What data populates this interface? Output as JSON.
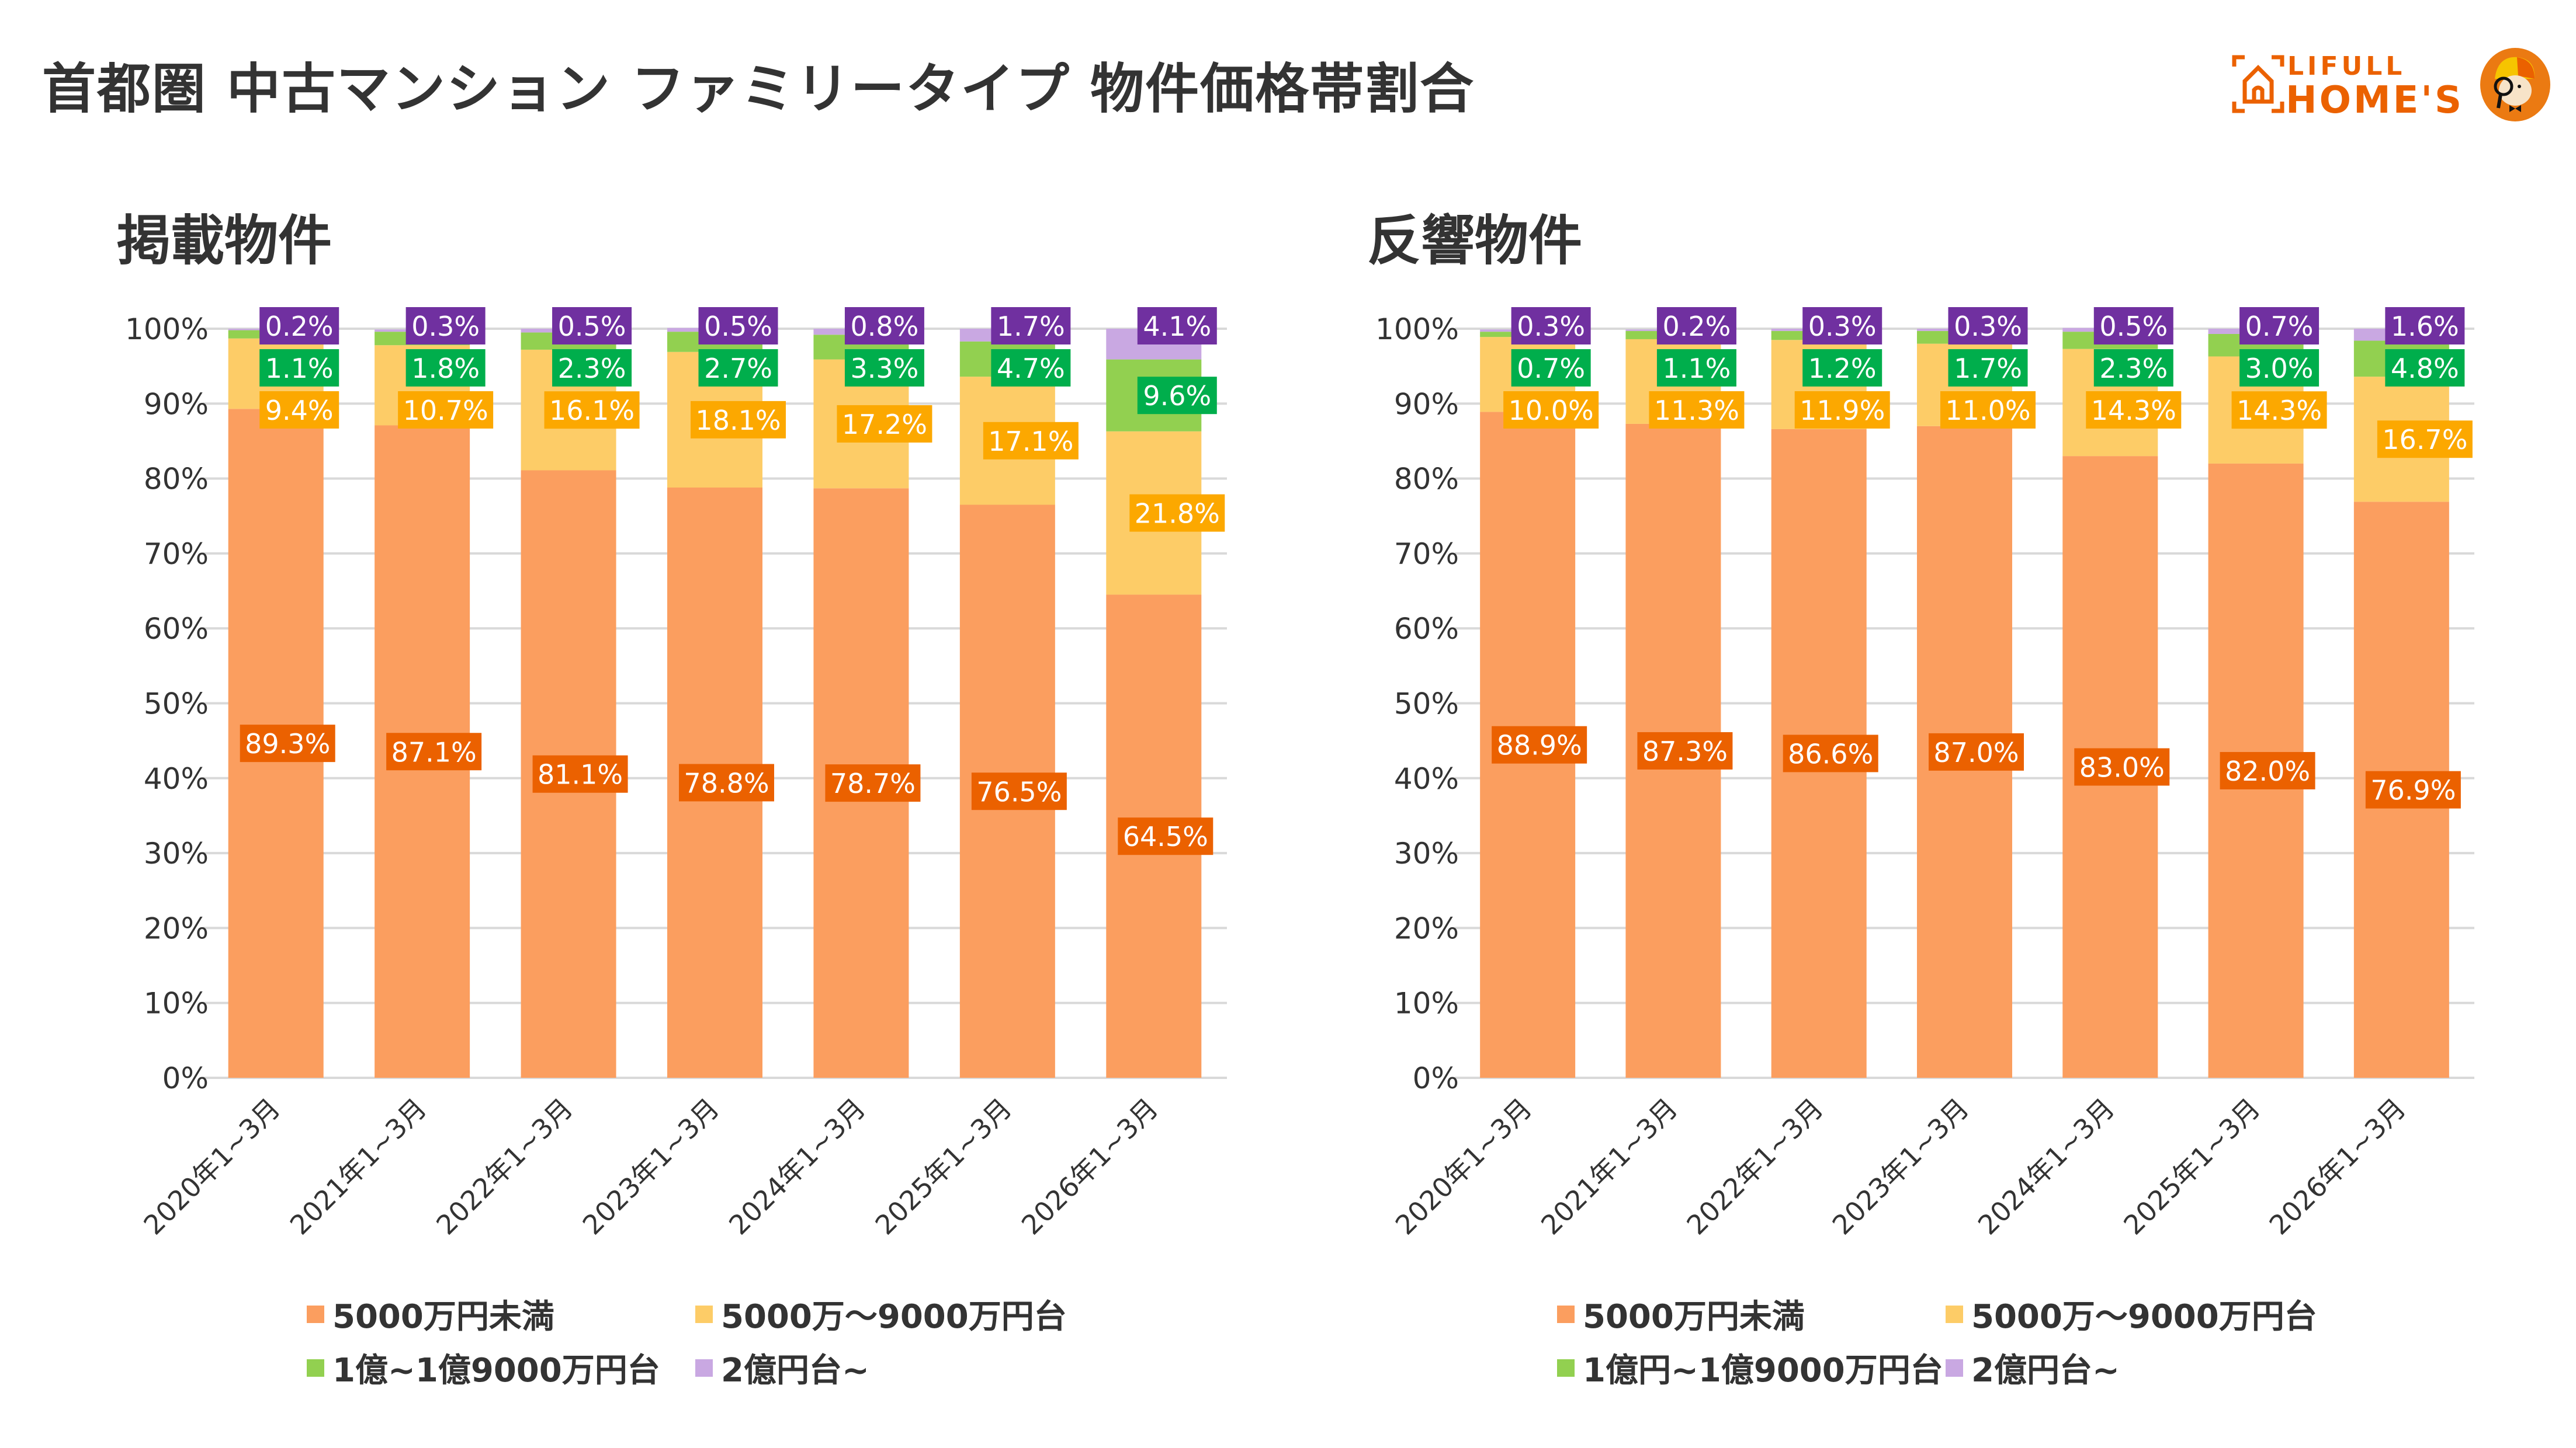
{
  "header": {
    "title": "首都圏 中古マンション ファミリータイプ 物件価格帯割合",
    "logo": {
      "line1": "LIFULL",
      "line2": "HOME'S",
      "icon": "house-frame-icon",
      "mascot": "mascot-detective-icon",
      "brand_color": "#EB6100"
    }
  },
  "colors": {
    "under_5000": "#FB9E5F",
    "under_5000_label": "#EB6100",
    "5000_9000": "#FDCC67",
    "5000_9000_label": "#FCA800",
    "1oku": "#92D050",
    "1oku_label": "#00AE4C",
    "2oku": "#C9A8E2",
    "2oku_label": "#7030A0",
    "grid": "#D9D9D9",
    "text": "#333333"
  },
  "chart_data": [
    {
      "type": "bar",
      "stacked": true,
      "title": "掲載物件",
      "xlabel": "",
      "ylabel": "",
      "ylim": [
        0,
        100
      ],
      "yticks": [
        "0%",
        "10%",
        "20%",
        "30%",
        "40%",
        "50%",
        "60%",
        "70%",
        "80%",
        "90%",
        "100%"
      ],
      "grid": true,
      "legend_position": "bottom",
      "categories": [
        "2020年1~3月",
        "2021年1~3月",
        "2022年1~3月",
        "2023年1~3月",
        "2024年1~3月",
        "2025年1~3月",
        "2026年1~3月"
      ],
      "series": [
        {
          "name": "5000万円未満",
          "values": [
            89.3,
            87.1,
            81.1,
            78.8,
            78.7,
            76.5,
            64.5
          ]
        },
        {
          "name": "5000万～9000万円台",
          "values": [
            9.4,
            10.7,
            16.1,
            18.1,
            17.2,
            17.1,
            21.8
          ]
        },
        {
          "name": "1億~1億9000万円台",
          "values": [
            1.1,
            1.8,
            2.3,
            2.7,
            3.3,
            4.7,
            9.6
          ]
        },
        {
          "name": "2億円台~",
          "values": [
            0.2,
            0.3,
            0.5,
            0.5,
            0.8,
            1.7,
            4.1
          ]
        }
      ]
    },
    {
      "type": "bar",
      "stacked": true,
      "title": "反響物件",
      "xlabel": "",
      "ylabel": "",
      "ylim": [
        0,
        100
      ],
      "yticks": [
        "0%",
        "10%",
        "20%",
        "30%",
        "40%",
        "50%",
        "60%",
        "70%",
        "80%",
        "90%",
        "100%"
      ],
      "grid": true,
      "legend_position": "bottom",
      "categories": [
        "2020年1~3月",
        "2021年1~3月",
        "2022年1~3月",
        "2023年1~3月",
        "2024年1~3月",
        "2025年1~3月",
        "2026年1~3月"
      ],
      "series": [
        {
          "name": "5000万円未満",
          "values": [
            88.9,
            87.3,
            86.6,
            87.0,
            83.0,
            82.0,
            76.9
          ]
        },
        {
          "name": "5000万～9000万円台",
          "values": [
            10.0,
            11.3,
            11.9,
            11.0,
            14.3,
            14.3,
            16.7
          ]
        },
        {
          "name": "1億円~1億9000万円台",
          "values": [
            0.7,
            1.1,
            1.2,
            1.7,
            2.3,
            3.0,
            4.8
          ]
        },
        {
          "name": "2億円台~",
          "values": [
            0.3,
            0.2,
            0.3,
            0.3,
            0.5,
            0.7,
            1.6
          ]
        }
      ]
    }
  ]
}
